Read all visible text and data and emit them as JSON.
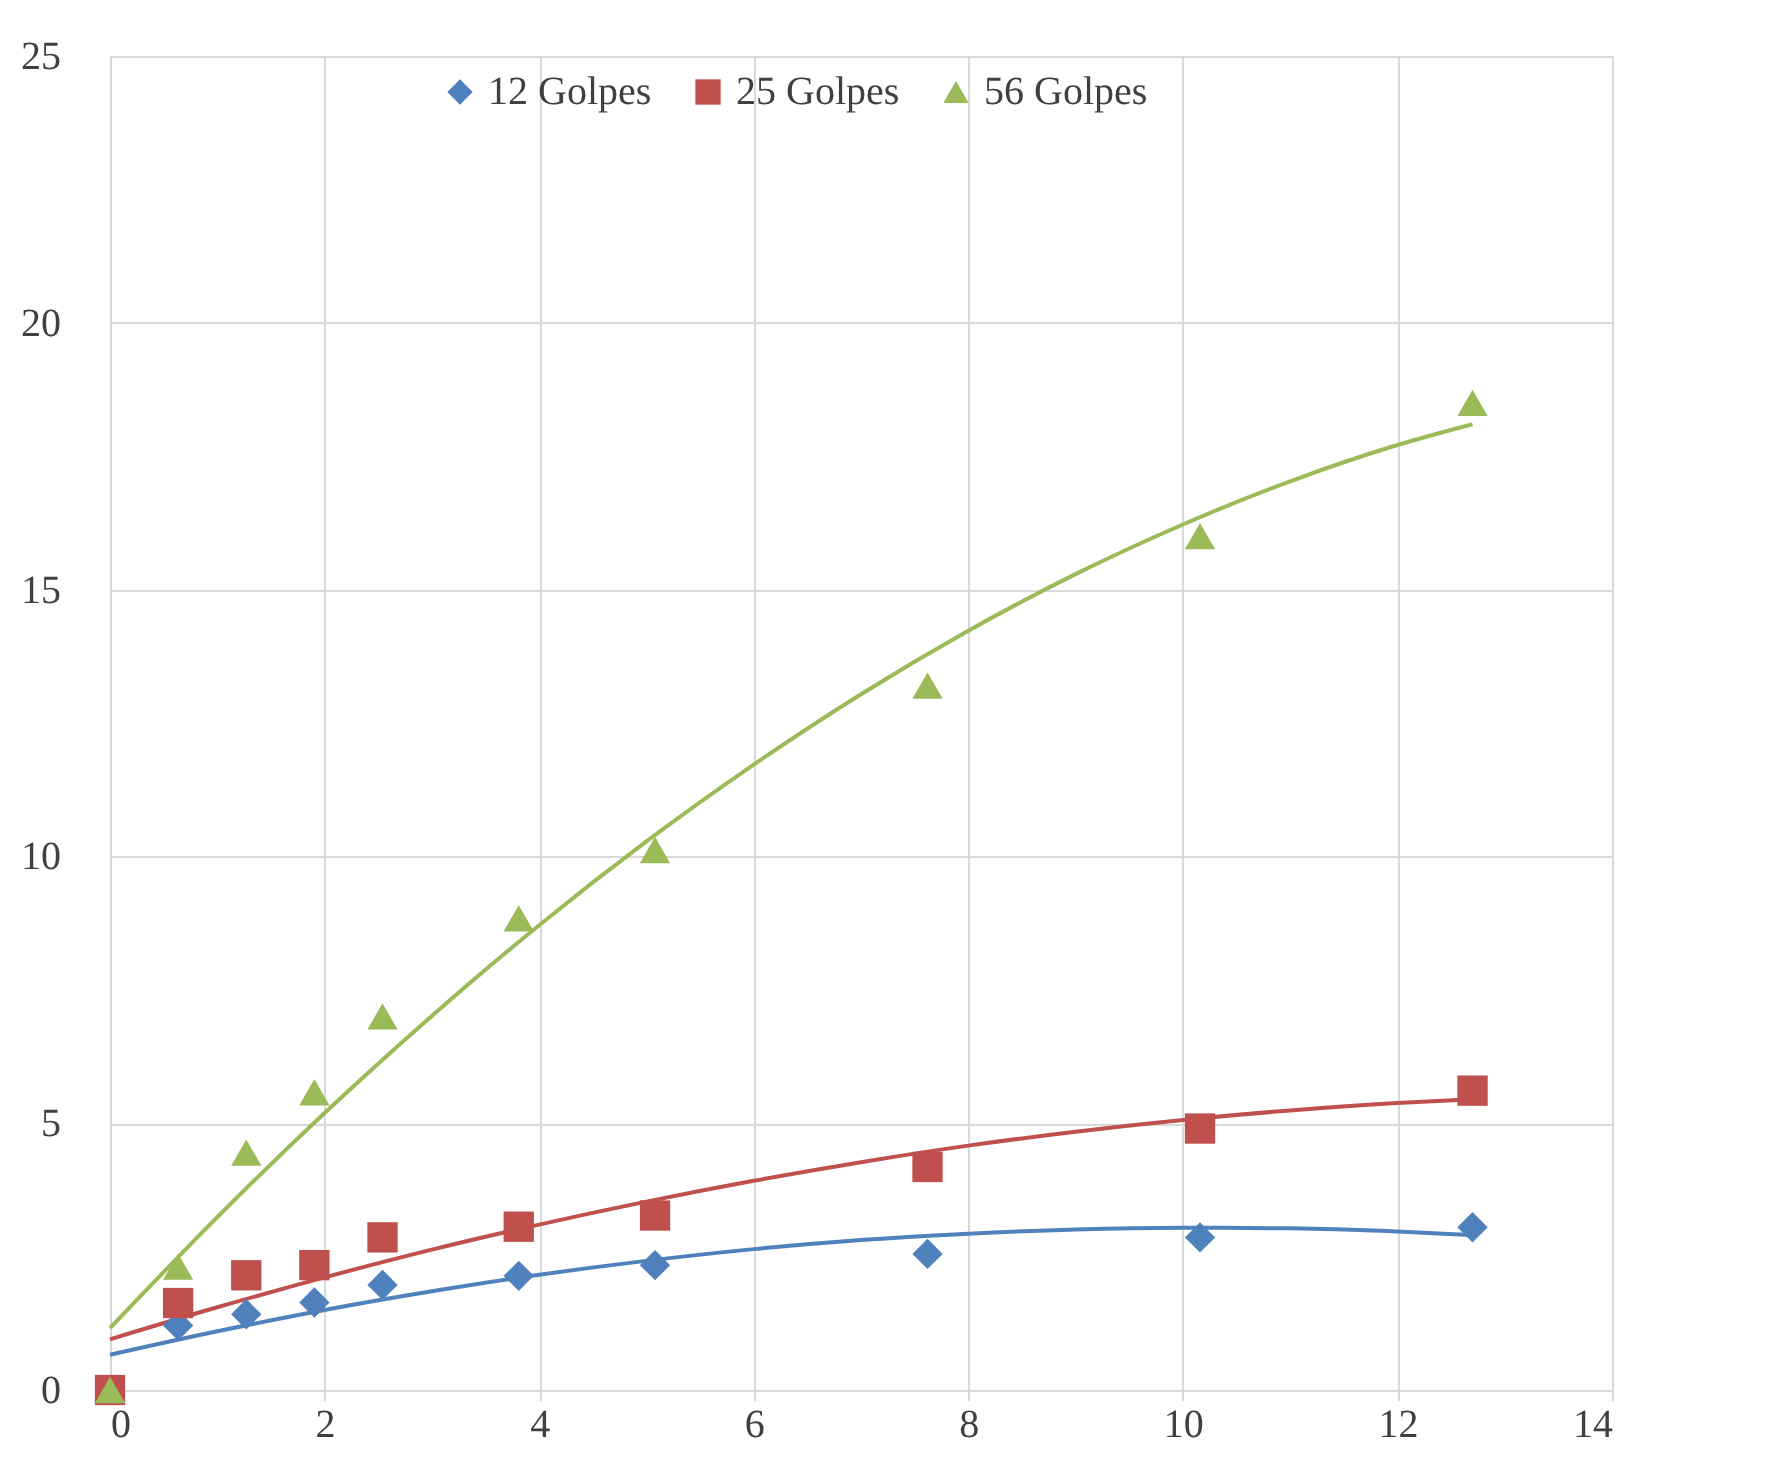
{
  "chart_data": {
    "type": "scatter",
    "x": [
      0,
      0.635,
      1.27,
      1.905,
      2.54,
      3.81,
      5.08,
      7.62,
      10.16,
      12.7
    ],
    "series": [
      {
        "name": "12 Golpes",
        "color": "#4f81bd",
        "marker": "diamond",
        "values": [
          null,
          1.21,
          1.42,
          1.64,
          1.97,
          2.14,
          2.34,
          2.55,
          2.86,
          3.05
        ]
      },
      {
        "name": "25 Golpes",
        "color": "#c0504d",
        "marker": "square",
        "values": [
          0,
          1.63,
          2.15,
          2.34,
          2.86,
          3.06,
          3.27,
          4.18,
          4.9,
          5.61
        ]
      },
      {
        "name": "56 Golpes",
        "color": "#9bbb59",
        "marker": "triangle",
        "values": [
          0,
          2.31,
          4.45,
          5.58,
          7.0,
          8.84,
          10.12,
          13.2,
          16.0,
          18.5
        ]
      },
      {
        "type": "line",
        "color": "#4f81bd",
        "marker": "none",
        "x": [
          0,
          1,
          2,
          3,
          4,
          5,
          6,
          7,
          8,
          9,
          10,
          11,
          12,
          12.7
        ],
        "values": [
          0.66,
          1.1,
          1.5,
          1.85,
          2.16,
          2.42,
          2.64,
          2.81,
          2.93,
          3.01,
          3.04,
          3.03,
          2.97,
          2.9
        ]
      },
      {
        "type": "line",
        "color": "#c0504d",
        "marker": "none",
        "x": [
          0,
          1,
          2,
          3,
          4,
          5,
          6,
          7,
          8,
          9,
          10,
          11,
          12,
          12.7
        ],
        "values": [
          0.95,
          1.55,
          2.11,
          2.63,
          3.1,
          3.53,
          3.92,
          4.27,
          4.58,
          4.84,
          5.06,
          5.24,
          5.38,
          5.45
        ]
      },
      {
        "type": "line",
        "color": "#9bbb59",
        "marker": "none",
        "x": [
          0,
          1,
          2,
          3,
          4,
          5,
          6,
          7,
          8,
          9,
          10,
          11,
          12,
          12.7
        ],
        "values": [
          1.16,
          3.24,
          5.19,
          7.01,
          8.71,
          10.28,
          11.72,
          13.04,
          14.23,
          15.29,
          16.22,
          17.03,
          17.71,
          18.1
        ]
      }
    ],
    "xlim": [
      0,
      14
    ],
    "xticks": [
      0,
      2,
      4,
      6,
      8,
      10,
      12,
      14
    ],
    "ylim": [
      0,
      25
    ],
    "yticks": [
      0,
      5,
      10,
      15,
      20,
      25
    ],
    "grid": true,
    "legend": "top"
  }
}
